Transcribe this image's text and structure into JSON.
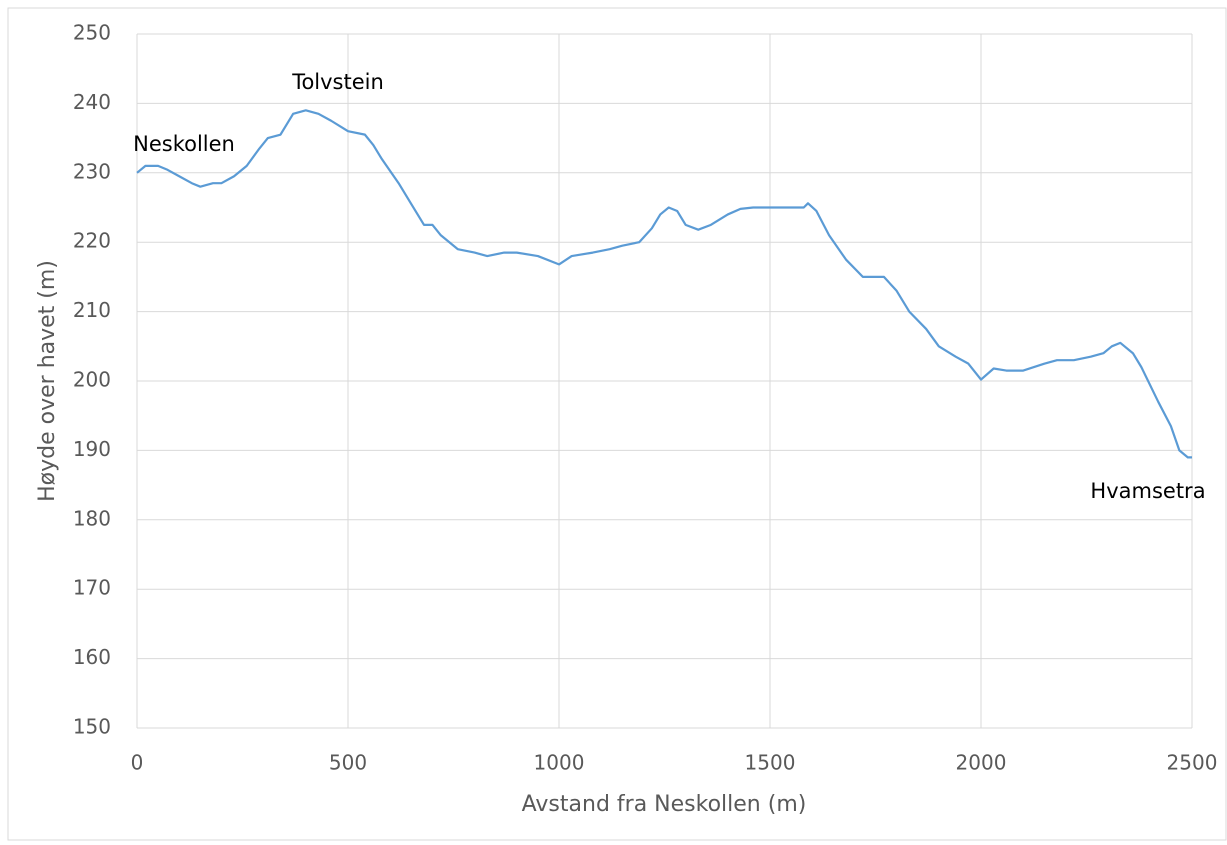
{
  "chart_data": {
    "type": "line",
    "xlabel": "Avstand fra Neskollen (m)",
    "ylabel": "Høyde over havet (m)",
    "annotations": [
      "Neskollen",
      "Tolvstein",
      "Hvamsetra"
    ],
    "xlim": [
      0,
      2500
    ],
    "ylim": [
      150,
      250
    ],
    "xticks": [
      0,
      500,
      1000,
      1500,
      2000,
      2500
    ],
    "yticks": [
      150,
      160,
      170,
      180,
      190,
      200,
      210,
      220,
      230,
      240,
      250
    ],
    "grid": true,
    "series": [
      {
        "color": "#5b9bd5",
        "x": [
          0,
          20,
          50,
          70,
          100,
          130,
          150,
          180,
          200,
          230,
          260,
          290,
          310,
          340,
          370,
          400,
          430,
          460,
          500,
          540,
          560,
          580,
          620,
          650,
          680,
          700,
          720,
          760,
          800,
          830,
          870,
          900,
          950,
          1000,
          1030,
          1080,
          1120,
          1150,
          1190,
          1220,
          1240,
          1260,
          1280,
          1300,
          1330,
          1360,
          1400,
          1430,
          1460,
          1500,
          1580,
          1590,
          1610,
          1640,
          1680,
          1720,
          1770,
          1800,
          1830,
          1870,
          1900,
          1940,
          1970,
          2000,
          2030,
          2060,
          2100,
          2150,
          2180,
          2220,
          2260,
          2290,
          2310,
          2330,
          2360,
          2380,
          2420,
          2450,
          2470,
          2490,
          2500
        ],
        "values": [
          230,
          231,
          231,
          230.5,
          229.5,
          228.5,
          228,
          228.5,
          228.5,
          229.5,
          231,
          233.5,
          235,
          235.5,
          238.5,
          239,
          238.5,
          237.5,
          236,
          235.5,
          234,
          232,
          228.5,
          225.5,
          222.5,
          222.5,
          221,
          219,
          218.5,
          218,
          218.5,
          218.5,
          218,
          216.8,
          218,
          218.5,
          219,
          219.5,
          220,
          222,
          224,
          225,
          224.5,
          222.5,
          221.8,
          222.5,
          224,
          224.8,
          225,
          225,
          225,
          225.6,
          224.5,
          221,
          217.5,
          215,
          215,
          213,
          210,
          207.5,
          205,
          203.5,
          202.5,
          200.2,
          201.8,
          201.5,
          201.5,
          202.5,
          203,
          203,
          203.5,
          204,
          205,
          205.5,
          204,
          202,
          197,
          193.5,
          190,
          189,
          189
        ]
      }
    ]
  }
}
